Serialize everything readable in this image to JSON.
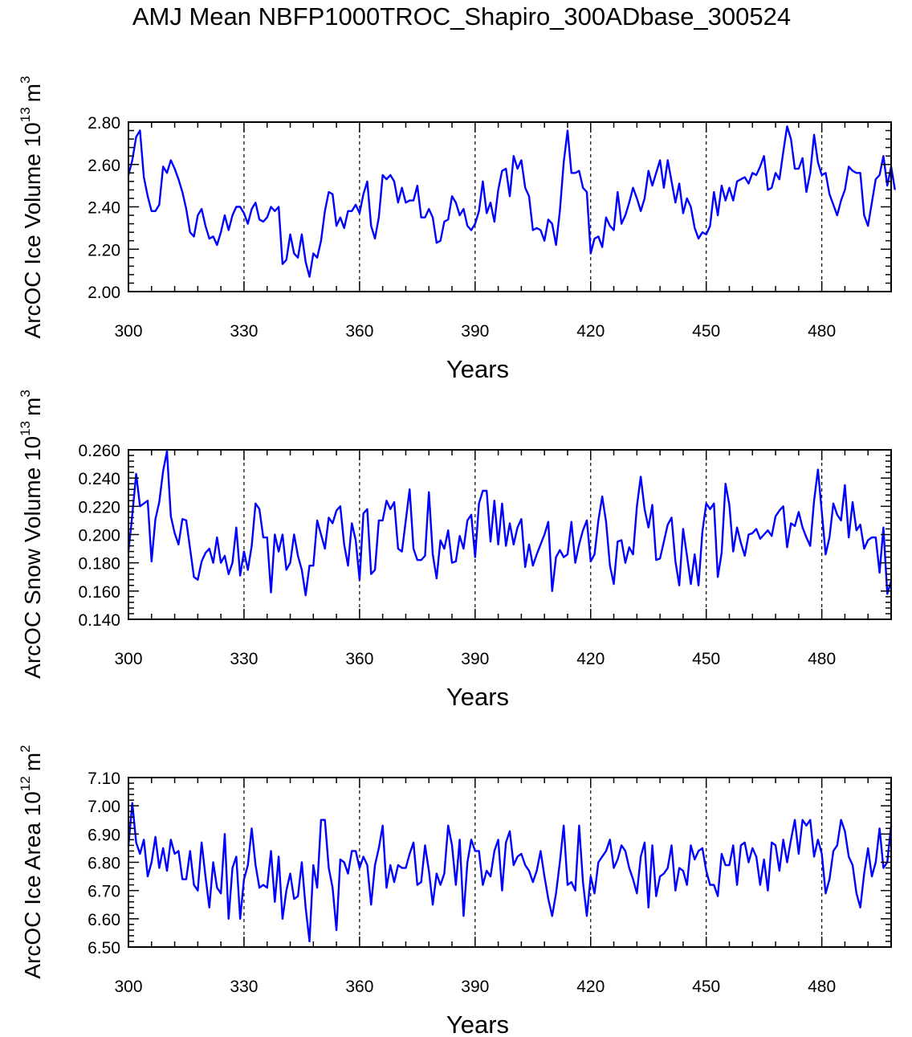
{
  "figure": {
    "title": "AMJ Mean NBFP1000TROC_Shapiro_300ADbase_300524"
  },
  "style": {
    "line_color": "#0000ff",
    "axis_color": "#000000",
    "gridline_style": "dashed"
  },
  "chart_data": [
    {
      "type": "line",
      "ylabel_main": "ArcOC Ice Volume 10",
      "ylabel_exp": "13",
      "ylabel_unit": "m",
      "ylabel_unit_exp": "3",
      "xlabel": "Years",
      "xlim": [
        300,
        498
      ],
      "ylim": [
        2.0,
        2.8
      ],
      "x_ticks": [
        "300",
        "330",
        "360",
        "390",
        "420",
        "450",
        "480"
      ],
      "y_ticks": [
        "2.00",
        "2.20",
        "2.40",
        "2.60",
        "2.80"
      ],
      "vlines": [
        330,
        360,
        390,
        420,
        450,
        480
      ],
      "x_start": 300,
      "values": [
        2.55,
        2.62,
        2.73,
        2.76,
        2.54,
        2.45,
        2.38,
        2.38,
        2.41,
        2.59,
        2.56,
        2.62,
        2.58,
        2.53,
        2.47,
        2.39,
        2.28,
        2.26,
        2.36,
        2.39,
        2.31,
        2.25,
        2.26,
        2.22,
        2.28,
        2.36,
        2.29,
        2.36,
        2.4,
        2.4,
        2.37,
        2.32,
        2.39,
        2.42,
        2.34,
        2.33,
        2.35,
        2.4,
        2.38,
        2.4,
        2.13,
        2.15,
        2.27,
        2.18,
        2.16,
        2.27,
        2.14,
        2.07,
        2.18,
        2.16,
        2.24,
        2.38,
        2.47,
        2.46,
        2.31,
        2.35,
        2.3,
        2.38,
        2.38,
        2.41,
        2.37,
        2.46,
        2.52,
        2.31,
        2.25,
        2.35,
        2.55,
        2.53,
        2.55,
        2.52,
        2.42,
        2.49,
        2.42,
        2.43,
        2.43,
        2.5,
        2.35,
        2.35,
        2.39,
        2.35,
        2.23,
        2.24,
        2.33,
        2.34,
        2.45,
        2.42,
        2.36,
        2.39,
        2.31,
        2.29,
        2.32,
        2.38,
        2.52,
        2.37,
        2.42,
        2.33,
        2.48,
        2.57,
        2.58,
        2.45,
        2.64,
        2.58,
        2.62,
        2.49,
        2.45,
        2.29,
        2.3,
        2.29,
        2.24,
        2.34,
        2.32,
        2.22,
        2.38,
        2.61,
        2.76,
        2.56,
        2.56,
        2.57,
        2.49,
        2.47,
        2.18,
        2.25,
        2.26,
        2.21,
        2.35,
        2.31,
        2.29,
        2.47,
        2.32,
        2.36,
        2.42,
        2.49,
        2.44,
        2.38,
        2.44,
        2.57,
        2.5,
        2.56,
        2.62,
        2.49,
        2.62,
        2.52,
        2.42,
        2.51,
        2.37,
        2.44,
        2.4,
        2.3,
        2.25,
        2.28,
        2.27,
        2.31,
        2.47,
        2.36,
        2.5,
        2.43,
        2.49,
        2.43,
        2.52,
        2.53,
        2.54,
        2.51,
        2.56,
        2.55,
        2.59,
        2.64,
        2.48,
        2.49,
        2.56,
        2.53,
        2.66,
        2.78,
        2.72,
        2.58,
        2.58,
        2.63,
        2.47,
        2.56,
        2.74,
        2.61,
        2.55,
        2.56,
        2.46,
        2.41,
        2.36,
        2.43,
        2.48,
        2.59,
        2.57,
        2.56,
        2.56,
        2.36,
        2.31,
        2.42,
        2.53,
        2.55,
        2.64,
        2.5,
        2.59,
        2.48
      ]
    },
    {
      "type": "line",
      "ylabel_main": "ArcOC Snow Volume 10",
      "ylabel_exp": "13",
      "ylabel_unit": "m",
      "ylabel_unit_exp": "3",
      "xlabel": "Years",
      "xlim": [
        300,
        498
      ],
      "ylim": [
        0.14,
        0.26
      ],
      "x_ticks": [
        "300",
        "330",
        "360",
        "390",
        "420",
        "450",
        "480"
      ],
      "y_ticks": [
        "0.140",
        "0.160",
        "0.180",
        "0.200",
        "0.220",
        "0.240",
        "0.260"
      ],
      "vlines": [
        330,
        360,
        390,
        420,
        450,
        480
      ],
      "x_start": 300,
      "values": [
        0.188,
        0.214,
        0.243,
        0.22,
        0.222,
        0.224,
        0.181,
        0.211,
        0.223,
        0.245,
        0.259,
        0.213,
        0.201,
        0.193,
        0.211,
        0.21,
        0.19,
        0.17,
        0.168,
        0.181,
        0.187,
        0.19,
        0.18,
        0.198,
        0.18,
        0.185,
        0.172,
        0.18,
        0.205,
        0.171,
        0.188,
        0.175,
        0.192,
        0.222,
        0.218,
        0.198,
        0.198,
        0.159,
        0.2,
        0.188,
        0.2,
        0.175,
        0.18,
        0.2,
        0.185,
        0.175,
        0.157,
        0.178,
        0.178,
        0.21,
        0.2,
        0.19,
        0.212,
        0.208,
        0.217,
        0.22,
        0.193,
        0.178,
        0.208,
        0.196,
        0.168,
        0.215,
        0.218,
        0.172,
        0.175,
        0.21,
        0.21,
        0.224,
        0.218,
        0.223,
        0.19,
        0.188,
        0.21,
        0.232,
        0.19,
        0.182,
        0.182,
        0.185,
        0.23,
        0.186,
        0.169,
        0.196,
        0.19,
        0.203,
        0.18,
        0.181,
        0.199,
        0.19,
        0.21,
        0.214,
        0.184,
        0.222,
        0.231,
        0.231,
        0.195,
        0.224,
        0.193,
        0.222,
        0.192,
        0.208,
        0.193,
        0.205,
        0.211,
        0.177,
        0.193,
        0.178,
        0.186,
        0.193,
        0.2,
        0.209,
        0.16,
        0.184,
        0.189,
        0.184,
        0.186,
        0.209,
        0.18,
        0.193,
        0.203,
        0.21,
        0.181,
        0.186,
        0.21,
        0.227,
        0.209,
        0.178,
        0.165,
        0.195,
        0.196,
        0.18,
        0.191,
        0.186,
        0.22,
        0.241,
        0.218,
        0.205,
        0.221,
        0.182,
        0.183,
        0.195,
        0.207,
        0.212,
        0.181,
        0.164,
        0.204,
        0.185,
        0.165,
        0.186,
        0.164,
        0.202,
        0.222,
        0.218,
        0.222,
        0.17,
        0.187,
        0.236,
        0.221,
        0.188,
        0.205,
        0.194,
        0.185,
        0.2,
        0.201,
        0.204,
        0.197,
        0.2,
        0.203,
        0.199,
        0.213,
        0.217,
        0.22,
        0.191,
        0.208,
        0.206,
        0.216,
        0.205,
        0.198,
        0.192,
        0.224,
        0.246,
        0.216,
        0.186,
        0.198,
        0.222,
        0.214,
        0.21,
        0.235,
        0.198,
        0.223,
        0.203,
        0.207,
        0.19,
        0.196,
        0.198,
        0.198,
        0.173,
        0.205,
        0.158,
        0.167
      ]
    },
    {
      "type": "line",
      "ylabel_main": "ArcOC Ice Area 10",
      "ylabel_exp": "12",
      "ylabel_unit": "m",
      "ylabel_unit_exp": "2",
      "xlabel": "Years",
      "xlim": [
        300,
        498
      ],
      "ylim": [
        6.5,
        7.1
      ],
      "x_ticks": [
        "300",
        "330",
        "360",
        "390",
        "420",
        "450",
        "480"
      ],
      "y_ticks": [
        "6.50",
        "6.60",
        "6.70",
        "6.80",
        "6.90",
        "7.00",
        "7.10"
      ],
      "vlines": [
        330,
        360,
        390,
        420,
        450,
        480
      ],
      "x_start": 300,
      "values": [
        6.86,
        7.01,
        6.87,
        6.83,
        6.88,
        6.75,
        6.8,
        6.89,
        6.78,
        6.85,
        6.77,
        6.88,
        6.83,
        6.84,
        6.74,
        6.74,
        6.84,
        6.72,
        6.7,
        6.87,
        6.75,
        6.64,
        6.8,
        6.71,
        6.69,
        6.9,
        6.6,
        6.78,
        6.82,
        6.6,
        6.74,
        6.79,
        6.92,
        6.79,
        6.71,
        6.72,
        6.71,
        6.84,
        6.66,
        6.82,
        6.6,
        6.7,
        6.76,
        6.67,
        6.68,
        6.8,
        6.64,
        6.52,
        6.79,
        6.71,
        6.95,
        6.95,
        6.78,
        6.71,
        6.56,
        6.81,
        6.8,
        6.76,
        6.84,
        6.84,
        6.78,
        6.82,
        6.79,
        6.65,
        6.79,
        6.85,
        6.93,
        6.71,
        6.79,
        6.73,
        6.79,
        6.78,
        6.78,
        6.83,
        6.87,
        6.72,
        6.73,
        6.86,
        6.77,
        6.65,
        6.76,
        6.72,
        6.76,
        6.93,
        6.86,
        6.72,
        6.88,
        6.61,
        6.8,
        6.88,
        6.84,
        6.84,
        6.72,
        6.77,
        6.75,
        6.84,
        6.88,
        6.7,
        6.87,
        6.91,
        6.79,
        6.82,
        6.83,
        6.79,
        6.77,
        6.73,
        6.77,
        6.84,
        6.75,
        6.67,
        6.61,
        6.69,
        6.8,
        6.93,
        6.72,
        6.73,
        6.7,
        6.93,
        6.73,
        6.61,
        6.75,
        6.69,
        6.8,
        6.82,
        6.84,
        6.88,
        6.78,
        6.81,
        6.86,
        6.84,
        6.78,
        6.74,
        6.69,
        6.82,
        6.87,
        6.64,
        6.86,
        6.68,
        6.75,
        6.76,
        6.78,
        6.86,
        6.7,
        6.78,
        6.77,
        6.72,
        6.86,
        6.81,
        6.84,
        6.85,
        6.77,
        6.72,
        6.72,
        6.68,
        6.83,
        6.79,
        6.79,
        6.86,
        6.72,
        6.86,
        6.87,
        6.8,
        6.85,
        6.82,
        6.72,
        6.81,
        6.7,
        6.87,
        6.86,
        6.77,
        6.88,
        6.8,
        6.88,
        6.95,
        6.83,
        6.95,
        6.93,
        6.95,
        6.82,
        6.88,
        6.83,
        6.69,
        6.74,
        6.84,
        6.86,
        6.95,
        6.91,
        6.82,
        6.79,
        6.69,
        6.64,
        6.76,
        6.85,
        6.75,
        6.8,
        6.92,
        6.78,
        6.8,
        6.93
      ]
    }
  ]
}
